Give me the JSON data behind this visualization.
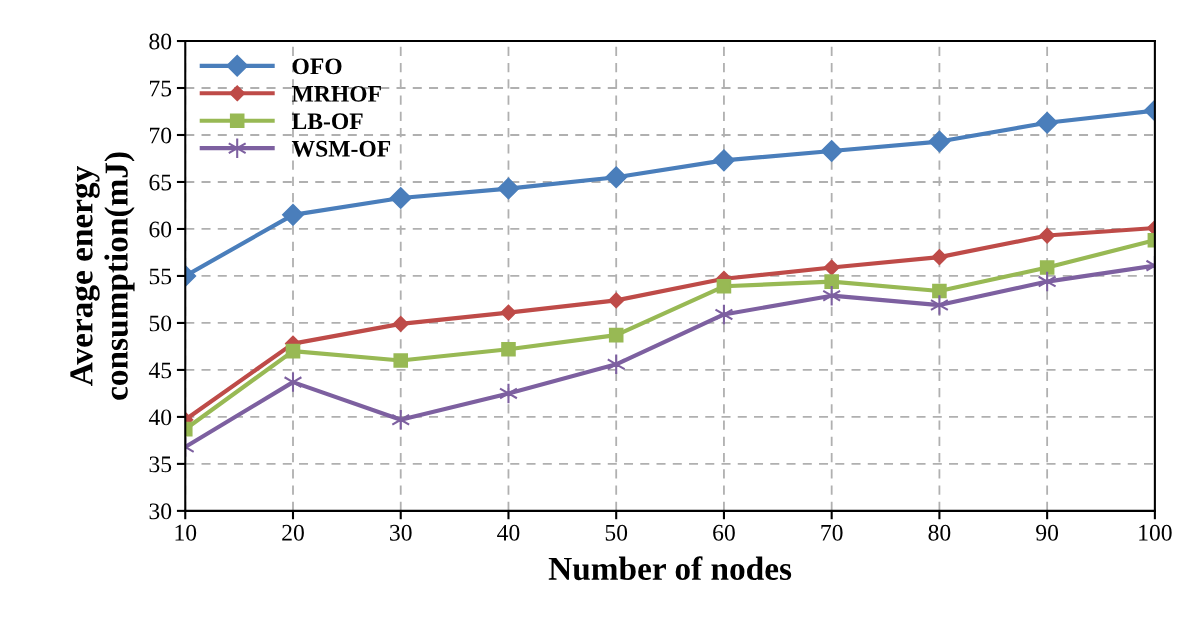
{
  "chart_data": {
    "type": "line",
    "xlabel": "Number of nodes",
    "ylabel": "Average energy\nconsumption(mJ)",
    "x": [
      10,
      20,
      30,
      40,
      50,
      60,
      70,
      80,
      90,
      100
    ],
    "series": [
      {
        "name": "OFO",
        "color": "#4a7ebb",
        "marker": "diamond",
        "values": [
          55.0,
          61.5,
          63.3,
          64.3,
          65.5,
          67.3,
          68.3,
          69.3,
          71.3,
          72.6
        ]
      },
      {
        "name": "MRHOF",
        "color": "#be4b48",
        "marker": "diamond",
        "values": [
          39.7,
          47.8,
          49.9,
          51.1,
          52.4,
          54.7,
          55.9,
          57.0,
          59.3,
          60.1
        ]
      },
      {
        "name": "LB-OF",
        "color": "#98b954",
        "marker": "square",
        "values": [
          38.7,
          47.0,
          46.0,
          47.2,
          48.7,
          53.9,
          54.4,
          53.4,
          55.9,
          58.8
        ]
      },
      {
        "name": "WSM-OF",
        "color": "#7d60a0",
        "marker": "cross",
        "values": [
          36.8,
          43.7,
          39.7,
          42.5,
          45.6,
          50.9,
          52.9,
          51.9,
          54.4,
          56.1
        ]
      }
    ],
    "xlim": [
      10,
      100
    ],
    "xticks": [
      10,
      20,
      30,
      40,
      50,
      60,
      70,
      80,
      90,
      100
    ],
    "ylim": [
      30,
      80
    ],
    "yticks": [
      30,
      35,
      40,
      45,
      50,
      55,
      60,
      65,
      70,
      75,
      80
    ],
    "grid": true,
    "legend": "top left",
    "line_style": "solid"
  }
}
